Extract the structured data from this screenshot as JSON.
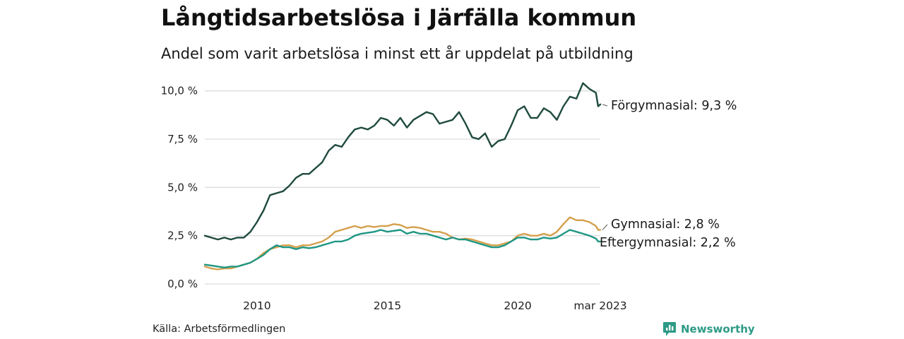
{
  "header": {
    "title": "Långtidsarbetslösa i Järfälla kommun",
    "subtitle": "Andel som varit arbetslösa i minst ett år uppdelat på utbildning"
  },
  "footer": {
    "source": "Källa: Arbetsförmedlingen",
    "brand": "Newsworthy",
    "brand_icon": "bar-chart-speech-bubble-icon"
  },
  "colors": {
    "forgymnasial": "#1f4a3f",
    "gymnasial": "#d4a04c",
    "eftergymnasial": "#1e9683",
    "grid": "#dddddd",
    "brand": "#2c9a86"
  },
  "chart_data": {
    "type": "line",
    "title": "Långtidsarbetslösa i Järfälla kommun",
    "subtitle": "Andel som varit arbetslösa i minst ett år uppdelat på utbildning",
    "xlabel": "",
    "ylabel": "",
    "x_ticks": [
      "2010",
      "2015",
      "2020",
      "mar 2023"
    ],
    "y_ticks": [
      "0,0 %",
      "2,5 %",
      "5,0 %",
      "7,5 %",
      "10,0 %"
    ],
    "y_tick_values": [
      0,
      2.5,
      5,
      7.5,
      10
    ],
    "ylim": [
      0,
      10.5
    ],
    "xlim": [
      "2008-01",
      "2023-03"
    ],
    "grid": "horizontal",
    "legend": "end-of-line labels",
    "series": [
      {
        "name": "Förgymnasial",
        "end_label": "Förgymnasial: 9,3 %",
        "points": [
          [
            "2008-01",
            2.5
          ],
          [
            "2008-04",
            2.4
          ],
          [
            "2008-07",
            2.3
          ],
          [
            "2008-10",
            2.4
          ],
          [
            "2009-01",
            2.3
          ],
          [
            "2009-04",
            2.4
          ],
          [
            "2009-07",
            2.4
          ],
          [
            "2009-10",
            2.7
          ],
          [
            "2010-01",
            3.2
          ],
          [
            "2010-04",
            3.8
          ],
          [
            "2010-07",
            4.6
          ],
          [
            "2010-10",
            4.7
          ],
          [
            "2011-01",
            4.8
          ],
          [
            "2011-04",
            5.1
          ],
          [
            "2011-07",
            5.5
          ],
          [
            "2011-10",
            5.7
          ],
          [
            "2012-01",
            5.7
          ],
          [
            "2012-04",
            6.0
          ],
          [
            "2012-07",
            6.3
          ],
          [
            "2012-10",
            6.9
          ],
          [
            "2013-01",
            7.2
          ],
          [
            "2013-04",
            7.1
          ],
          [
            "2013-07",
            7.6
          ],
          [
            "2013-10",
            8.0
          ],
          [
            "2014-01",
            8.1
          ],
          [
            "2014-04",
            8.0
          ],
          [
            "2014-07",
            8.2
          ],
          [
            "2014-10",
            8.6
          ],
          [
            "2015-01",
            8.5
          ],
          [
            "2015-04",
            8.2
          ],
          [
            "2015-07",
            8.6
          ],
          [
            "2015-10",
            8.1
          ],
          [
            "2016-01",
            8.5
          ],
          [
            "2016-04",
            8.7
          ],
          [
            "2016-07",
            8.9
          ],
          [
            "2016-10",
            8.8
          ],
          [
            "2017-01",
            8.3
          ],
          [
            "2017-04",
            8.4
          ],
          [
            "2017-07",
            8.5
          ],
          [
            "2017-10",
            8.9
          ],
          [
            "2018-01",
            8.3
          ],
          [
            "2018-04",
            7.6
          ],
          [
            "2018-07",
            7.5
          ],
          [
            "2018-10",
            7.8
          ],
          [
            "2019-01",
            7.1
          ],
          [
            "2019-04",
            7.4
          ],
          [
            "2019-07",
            7.5
          ],
          [
            "2019-10",
            8.2
          ],
          [
            "2020-01",
            9.0
          ],
          [
            "2020-04",
            9.2
          ],
          [
            "2020-07",
            8.6
          ],
          [
            "2020-10",
            8.6
          ],
          [
            "2021-01",
            9.1
          ],
          [
            "2021-04",
            8.9
          ],
          [
            "2021-07",
            8.5
          ],
          [
            "2021-10",
            9.2
          ],
          [
            "2022-01",
            9.7
          ],
          [
            "2022-04",
            9.6
          ],
          [
            "2022-07",
            10.4
          ],
          [
            "2022-10",
            10.1
          ],
          [
            "2023-01",
            9.9
          ],
          [
            "2023-02",
            9.2
          ],
          [
            "2023-03",
            9.3
          ]
        ]
      },
      {
        "name": "Gymnasial",
        "end_label": "Gymnasial: 2,8 %",
        "points": [
          [
            "2008-01",
            0.9
          ],
          [
            "2008-04",
            0.8
          ],
          [
            "2008-07",
            0.75
          ],
          [
            "2008-10",
            0.8
          ],
          [
            "2009-01",
            0.8
          ],
          [
            "2009-04",
            0.9
          ],
          [
            "2009-07",
            1.0
          ],
          [
            "2009-10",
            1.1
          ],
          [
            "2010-01",
            1.3
          ],
          [
            "2010-04",
            1.6
          ],
          [
            "2010-07",
            1.8
          ],
          [
            "2010-10",
            1.9
          ],
          [
            "2011-01",
            2.0
          ],
          [
            "2011-04",
            2.0
          ],
          [
            "2011-07",
            1.9
          ],
          [
            "2011-10",
            2.0
          ],
          [
            "2012-01",
            2.0
          ],
          [
            "2012-04",
            2.1
          ],
          [
            "2012-07",
            2.2
          ],
          [
            "2012-10",
            2.4
          ],
          [
            "2013-01",
            2.7
          ],
          [
            "2013-04",
            2.8
          ],
          [
            "2013-07",
            2.9
          ],
          [
            "2013-10",
            3.0
          ],
          [
            "2014-01",
            2.9
          ],
          [
            "2014-04",
            3.0
          ],
          [
            "2014-07",
            2.95
          ],
          [
            "2014-10",
            3.0
          ],
          [
            "2015-01",
            3.0
          ],
          [
            "2015-04",
            3.1
          ],
          [
            "2015-07",
            3.05
          ],
          [
            "2015-10",
            2.9
          ],
          [
            "2016-01",
            2.95
          ],
          [
            "2016-04",
            2.9
          ],
          [
            "2016-07",
            2.8
          ],
          [
            "2016-10",
            2.7
          ],
          [
            "2017-01",
            2.7
          ],
          [
            "2017-04",
            2.6
          ],
          [
            "2017-07",
            2.4
          ],
          [
            "2017-10",
            2.3
          ],
          [
            "2018-01",
            2.35
          ],
          [
            "2018-04",
            2.3
          ],
          [
            "2018-07",
            2.2
          ],
          [
            "2018-10",
            2.1
          ],
          [
            "2019-01",
            2.0
          ],
          [
            "2019-04",
            2.0
          ],
          [
            "2019-07",
            2.1
          ],
          [
            "2019-10",
            2.2
          ],
          [
            "2020-01",
            2.5
          ],
          [
            "2020-04",
            2.6
          ],
          [
            "2020-07",
            2.5
          ],
          [
            "2020-10",
            2.5
          ],
          [
            "2021-01",
            2.6
          ],
          [
            "2021-04",
            2.5
          ],
          [
            "2021-07",
            2.7
          ],
          [
            "2021-10",
            3.1
          ],
          [
            "2022-01",
            3.45
          ],
          [
            "2022-04",
            3.3
          ],
          [
            "2022-07",
            3.3
          ],
          [
            "2022-10",
            3.2
          ],
          [
            "2023-01",
            3.0
          ],
          [
            "2023-02",
            2.8
          ],
          [
            "2023-03",
            2.8
          ]
        ]
      },
      {
        "name": "Eftergymnasial",
        "end_label": "Eftergymnasial: 2,2 %",
        "points": [
          [
            "2008-01",
            1.0
          ],
          [
            "2008-04",
            0.95
          ],
          [
            "2008-07",
            0.9
          ],
          [
            "2008-10",
            0.85
          ],
          [
            "2009-01",
            0.9
          ],
          [
            "2009-04",
            0.9
          ],
          [
            "2009-07",
            1.0
          ],
          [
            "2009-10",
            1.1
          ],
          [
            "2010-01",
            1.3
          ],
          [
            "2010-04",
            1.5
          ],
          [
            "2010-07",
            1.8
          ],
          [
            "2010-10",
            2.0
          ],
          [
            "2011-01",
            1.9
          ],
          [
            "2011-04",
            1.9
          ],
          [
            "2011-07",
            1.8
          ],
          [
            "2011-10",
            1.9
          ],
          [
            "2012-01",
            1.85
          ],
          [
            "2012-04",
            1.9
          ],
          [
            "2012-07",
            2.0
          ],
          [
            "2012-10",
            2.1
          ],
          [
            "2013-01",
            2.2
          ],
          [
            "2013-04",
            2.2
          ],
          [
            "2013-07",
            2.3
          ],
          [
            "2013-10",
            2.5
          ],
          [
            "2014-01",
            2.6
          ],
          [
            "2014-04",
            2.65
          ],
          [
            "2014-07",
            2.7
          ],
          [
            "2014-10",
            2.8
          ],
          [
            "2015-01",
            2.7
          ],
          [
            "2015-04",
            2.75
          ],
          [
            "2015-07",
            2.8
          ],
          [
            "2015-10",
            2.6
          ],
          [
            "2016-01",
            2.7
          ],
          [
            "2016-04",
            2.6
          ],
          [
            "2016-07",
            2.6
          ],
          [
            "2016-10",
            2.5
          ],
          [
            "2017-01",
            2.4
          ],
          [
            "2017-04",
            2.3
          ],
          [
            "2017-07",
            2.4
          ],
          [
            "2017-10",
            2.3
          ],
          [
            "2018-01",
            2.3
          ],
          [
            "2018-04",
            2.2
          ],
          [
            "2018-07",
            2.1
          ],
          [
            "2018-10",
            2.0
          ],
          [
            "2019-01",
            1.9
          ],
          [
            "2019-04",
            1.9
          ],
          [
            "2019-07",
            2.0
          ],
          [
            "2019-10",
            2.2
          ],
          [
            "2020-01",
            2.4
          ],
          [
            "2020-04",
            2.4
          ],
          [
            "2020-07",
            2.3
          ],
          [
            "2020-10",
            2.3
          ],
          [
            "2021-01",
            2.4
          ],
          [
            "2021-04",
            2.35
          ],
          [
            "2021-07",
            2.4
          ],
          [
            "2021-10",
            2.6
          ],
          [
            "2022-01",
            2.8
          ],
          [
            "2022-04",
            2.7
          ],
          [
            "2022-07",
            2.6
          ],
          [
            "2022-10",
            2.5
          ],
          [
            "2023-01",
            2.35
          ],
          [
            "2023-02",
            2.2
          ],
          [
            "2023-03",
            2.2
          ]
        ]
      }
    ]
  }
}
